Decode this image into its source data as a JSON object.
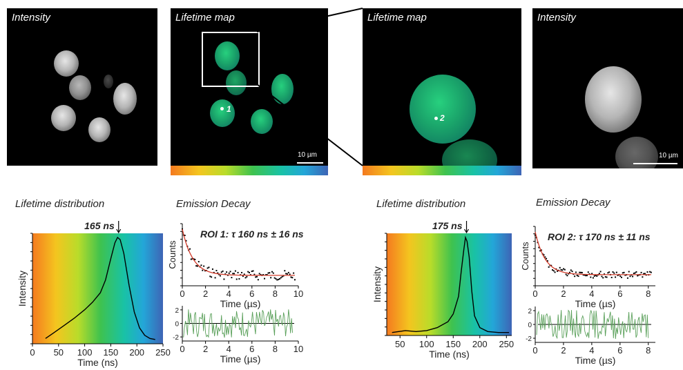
{
  "panels": {
    "intensity_1_title": "Intensity",
    "lifetime_map_1_title": "Lifetime map",
    "lifetime_map_2_title": "Lifetime map",
    "intensity_2_title": "Intensity",
    "scalebar_1_label": "10 µm",
    "scalebar_2_label": "10 µm",
    "roi_1_label": "1",
    "roi_2_label": "2"
  },
  "sections": {
    "left_distribution_title": "Lifetime distribution",
    "left_decay_title": "Emission Decay",
    "right_distribution_title": "Lifetime distribution",
    "right_decay_title": "Emission Decay"
  },
  "colors": {
    "curve": "#000000",
    "fit": "#d23b2a",
    "residual": "#5aa05a"
  },
  "chart_data": [
    {
      "type": "line",
      "name_ref": "left_distribution",
      "title": "",
      "xlabel": "Time (ns)",
      "ylabel": "Intensity",
      "xlim": [
        0,
        250
      ],
      "xticks": [
        0,
        50,
        100,
        150,
        200,
        250
      ],
      "annotation": "165 ns",
      "peak": 165,
      "x": [
        25,
        40,
        60,
        80,
        100,
        115,
        130,
        140,
        150,
        158,
        163,
        168,
        175,
        185,
        195,
        205,
        215,
        225,
        235
      ],
      "y": [
        0.05,
        0.1,
        0.17,
        0.24,
        0.32,
        0.39,
        0.48,
        0.6,
        0.8,
        0.95,
        1.0,
        0.98,
        0.85,
        0.55,
        0.3,
        0.15,
        0.08,
        0.05,
        0.04
      ]
    },
    {
      "type": "scatter",
      "name_ref": "left_decay",
      "title": "ROI 1: τ 160 ns ± 16 ns",
      "xlabel": "Time (µs)",
      "ylabel": "Counts",
      "xlim": [
        0,
        10
      ],
      "xticks": [
        0,
        2,
        4,
        6,
        8,
        10
      ],
      "lifetime_us": 0.16,
      "residual_yticks": [
        2,
        0,
        -2
      ]
    },
    {
      "type": "line",
      "name_ref": "right_distribution",
      "title": "",
      "xlabel": "Time (ns)",
      "ylabel": "Intensity",
      "xlim": [
        25,
        260
      ],
      "xticks": [
        50,
        100,
        150,
        200,
        250
      ],
      "annotation": "175 ns",
      "peak": 175,
      "x": [
        35,
        60,
        80,
        100,
        120,
        140,
        150,
        160,
        165,
        170,
        173,
        176,
        180,
        185,
        190,
        200,
        215,
        235,
        255
      ],
      "y": [
        0.03,
        0.05,
        0.04,
        0.05,
        0.08,
        0.14,
        0.22,
        0.4,
        0.65,
        0.88,
        1.0,
        0.96,
        0.8,
        0.45,
        0.2,
        0.08,
        0.04,
        0.03,
        0.03
      ]
    },
    {
      "type": "scatter",
      "name_ref": "right_decay",
      "title": "ROI 2: τ 170 ns ± 11 ns",
      "xlabel": "Time (µs)",
      "ylabel": "Counts",
      "xlim": [
        0,
        8.5
      ],
      "xticks": [
        0,
        2,
        4,
        6,
        8
      ],
      "lifetime_us": 0.17,
      "residual_yticks": [
        2,
        0,
        -2
      ]
    }
  ]
}
